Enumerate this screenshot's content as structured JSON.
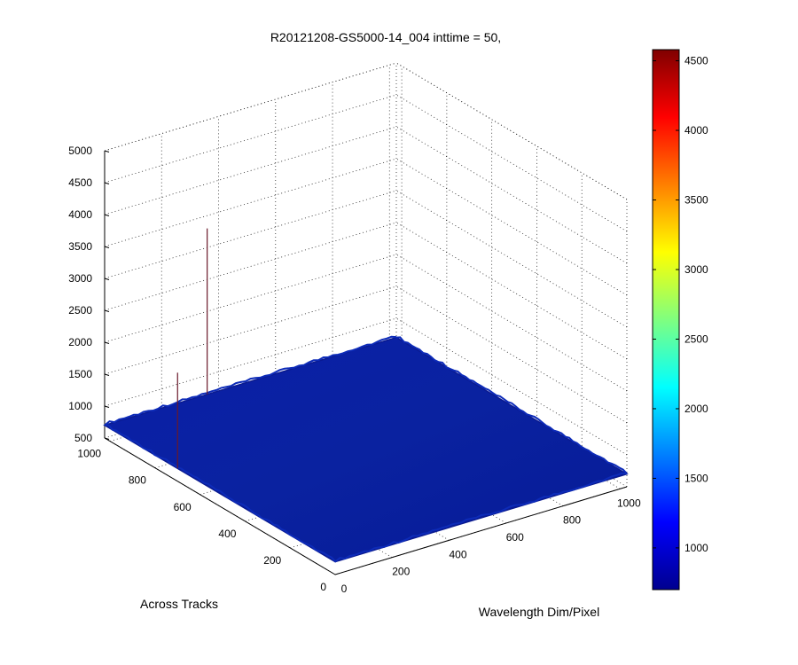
{
  "chart_data": {
    "type": "surface",
    "title": "R20121208-GS5000-14_004 inttime = 50,",
    "xlabel": "Wavelength Dim/Pixel",
    "ylabel": "Across Tracks",
    "zlabel": "",
    "xlim": [
      0,
      1024
    ],
    "ylim": [
      0,
      1024
    ],
    "zlim": [
      500,
      5000
    ],
    "x_ticks": [
      "0",
      "200",
      "400",
      "600",
      "800",
      "1000"
    ],
    "y_ticks": [
      "0",
      "200",
      "400",
      "600",
      "800",
      "1000"
    ],
    "z_ticks": [
      "500",
      "1000",
      "1500",
      "2000",
      "2500",
      "3000",
      "3500",
      "4000",
      "4500",
      "5000"
    ],
    "grid": true,
    "surface_baseline": 700,
    "spikes": [
      {
        "x": 0,
        "y": 700,
        "z": 2200
      },
      {
        "x": 360,
        "y": 1024,
        "z": 3300
      }
    ],
    "colorbar": {
      "colormap": "jet",
      "range": [
        700,
        4580
      ],
      "ticks": [
        "1000",
        "1500",
        "2000",
        "2500",
        "3000",
        "3500",
        "4000",
        "4500"
      ],
      "colors": [
        "#00008f",
        "#0000ff",
        "#00ffff",
        "#ffff00",
        "#ff0000",
        "#800000"
      ]
    }
  }
}
